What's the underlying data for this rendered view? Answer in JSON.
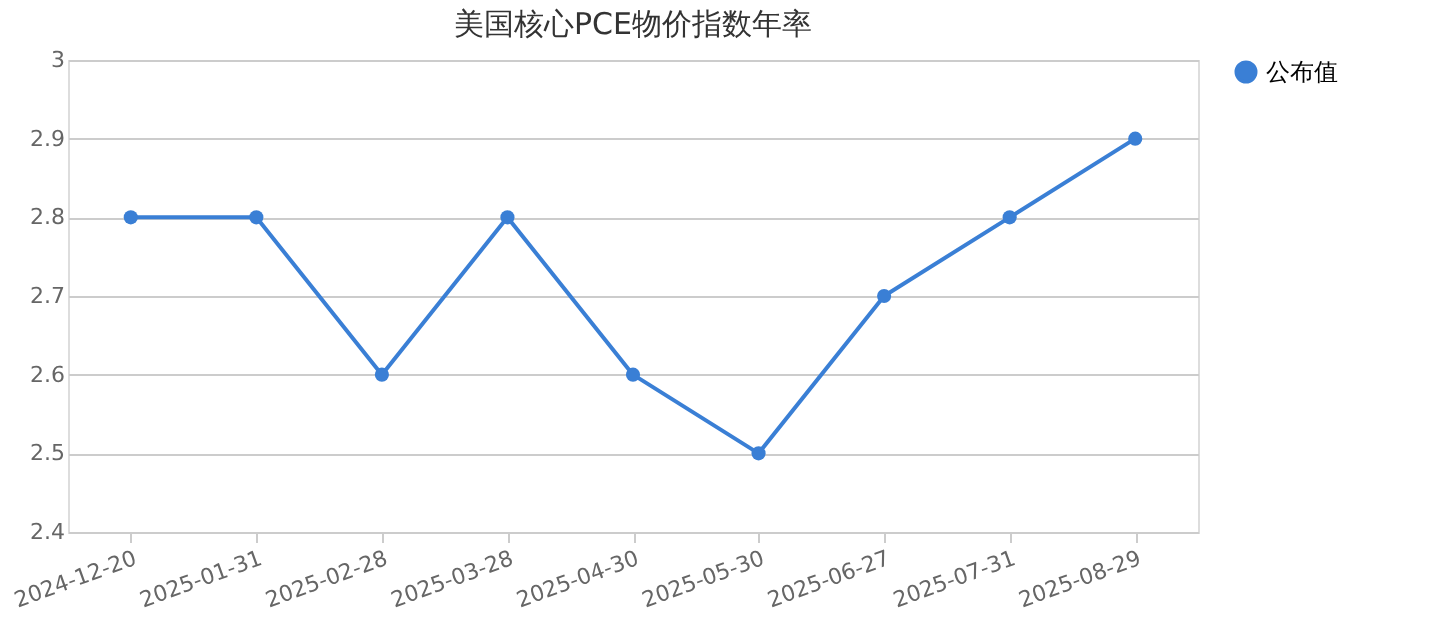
{
  "chart_data": {
    "type": "line",
    "title": "美国核心PCE物价指数年率",
    "categories": [
      "2024-12-20",
      "2025-01-31",
      "2025-02-28",
      "2025-03-28",
      "2025-04-30",
      "2025-05-30",
      "2025-06-27",
      "2025-07-31",
      "2025-08-29"
    ],
    "series": [
      {
        "name": "公布值",
        "color": "#3a7fd5",
        "values": [
          2.8,
          2.8,
          2.6,
          2.8,
          2.6,
          2.5,
          2.7,
          2.8,
          2.9
        ]
      }
    ],
    "ylim": [
      2.4,
      3
    ],
    "yticks": [
      2.4,
      2.5,
      2.6,
      2.7,
      2.8,
      2.9,
      3
    ],
    "grid": "y",
    "legend": "right",
    "marker": "circle",
    "line_style": "solid"
  }
}
